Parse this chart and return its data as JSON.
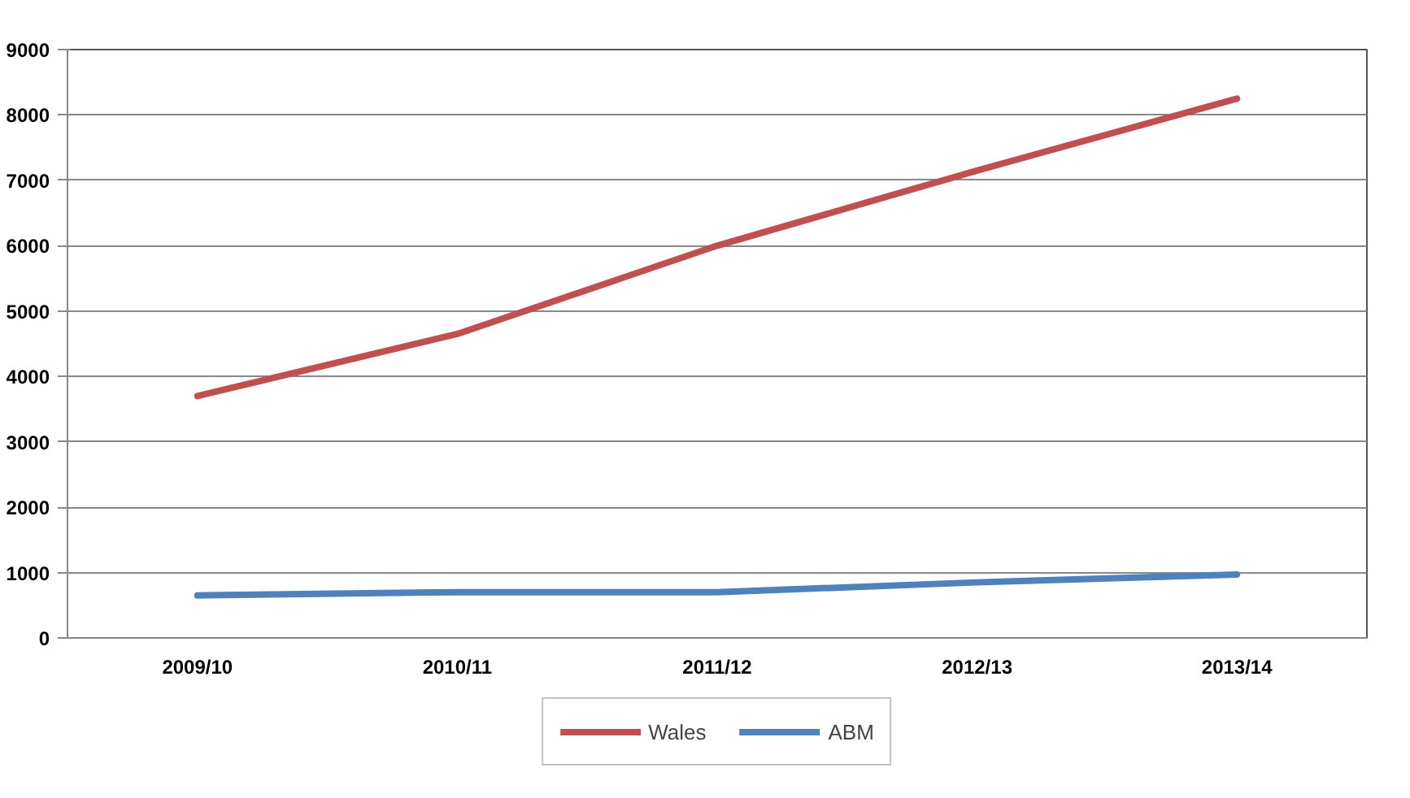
{
  "chart_data": {
    "type": "line",
    "categories": [
      "2009/10",
      "2010/11",
      "2011/12",
      "2012/13",
      "2013/14"
    ],
    "series": [
      {
        "name": "Wales",
        "color": "#c0504d",
        "values": [
          3700,
          4650,
          6000,
          7150,
          8250
        ]
      },
      {
        "name": "ABM",
        "color": "#4f81bd",
        "values": [
          650,
          700,
          700,
          850,
          970
        ]
      }
    ],
    "ylim": [
      0,
      9000
    ],
    "yticks": [
      0,
      1000,
      2000,
      3000,
      4000,
      5000,
      6000,
      7000,
      8000,
      9000
    ],
    "grid": "y",
    "legend": "bottom",
    "marker": "none",
    "line_style": "solid"
  }
}
